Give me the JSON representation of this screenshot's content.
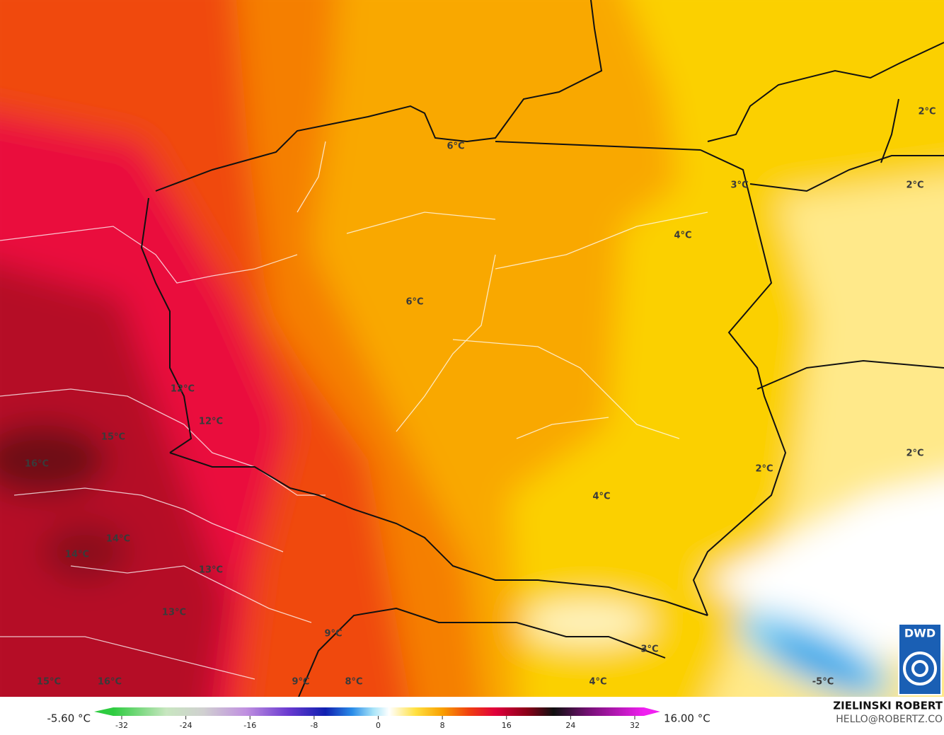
{
  "map": {
    "labels": [
      "2°C",
      "6°C",
      "3°C",
      "2°C",
      "4°C",
      "6°C",
      "12°C",
      "12°C",
      "15°C",
      "16°C",
      "2°C",
      "2°C",
      "4°C",
      "14°C",
      "14°C",
      "13°C",
      "13°C",
      "9°C",
      "3°C",
      "15°C",
      "16°C",
      "9°C",
      "8°C",
      "4°C",
      "-5°C"
    ]
  },
  "colorbar": {
    "ticks": [
      -32,
      -24,
      -16,
      -8,
      0,
      8,
      16,
      24,
      32
    ],
    "min_label": "-5.60 °C",
    "max_label": "16.00 °C"
  },
  "credits": {
    "author": "ZIELINSKI ROBERT",
    "contact": "HELLO@ROBERTZ.CO",
    "logo": "DWD"
  }
}
